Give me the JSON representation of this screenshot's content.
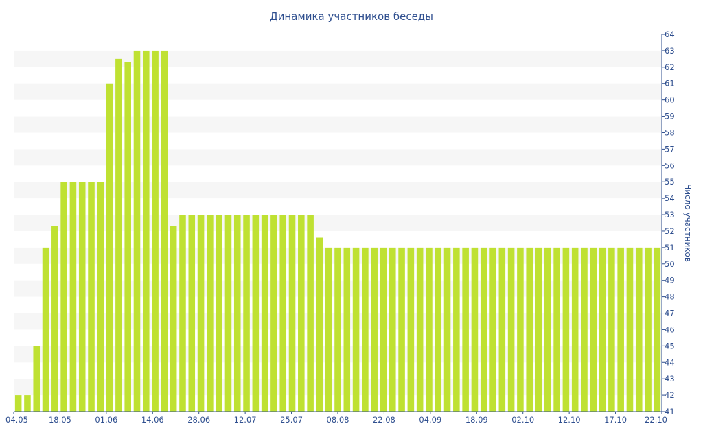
{
  "chart_data": {
    "type": "bar",
    "title": "Динамика участников беседы",
    "xlabel": "",
    "ylabel": "Число участников",
    "ylim": [
      41,
      64
    ],
    "y_ticks": [
      41,
      42,
      43,
      44,
      45,
      46,
      47,
      48,
      49,
      50,
      51,
      52,
      53,
      54,
      55,
      56,
      57,
      58,
      59,
      60,
      61,
      62,
      63,
      64
    ],
    "y_axis_position": "right",
    "grid": "alternating horizontal bands",
    "bar_color": "#bfe132",
    "band_color": "#f6f6f6",
    "text_color": "#2f4f8f",
    "x_tick_labels": [
      "04.05",
      "18.05",
      "01.06",
      "14.06",
      "28.06",
      "12.07",
      "25.07",
      "08.08",
      "22.08",
      "04.09",
      "18.09",
      "02.10",
      "12.10",
      "17.10",
      "22.10"
    ],
    "values": [
      42,
      42,
      45,
      51,
      52.3,
      55,
      55,
      55,
      55,
      55,
      61,
      62.5,
      62.3,
      63,
      63,
      63,
      63,
      52.3,
      53,
      53,
      53,
      53,
      53,
      53,
      53,
      53,
      53,
      53,
      53,
      53,
      53,
      53,
      53,
      51.6,
      51,
      51,
      51,
      51,
      51,
      51,
      51,
      51,
      51,
      51,
      51,
      51,
      51,
      51,
      51,
      51,
      51,
      51,
      51,
      51,
      51,
      51,
      51,
      51,
      51,
      51,
      51,
      51,
      51,
      51,
      51,
      51,
      51,
      51,
      51,
      51,
      51
    ]
  }
}
